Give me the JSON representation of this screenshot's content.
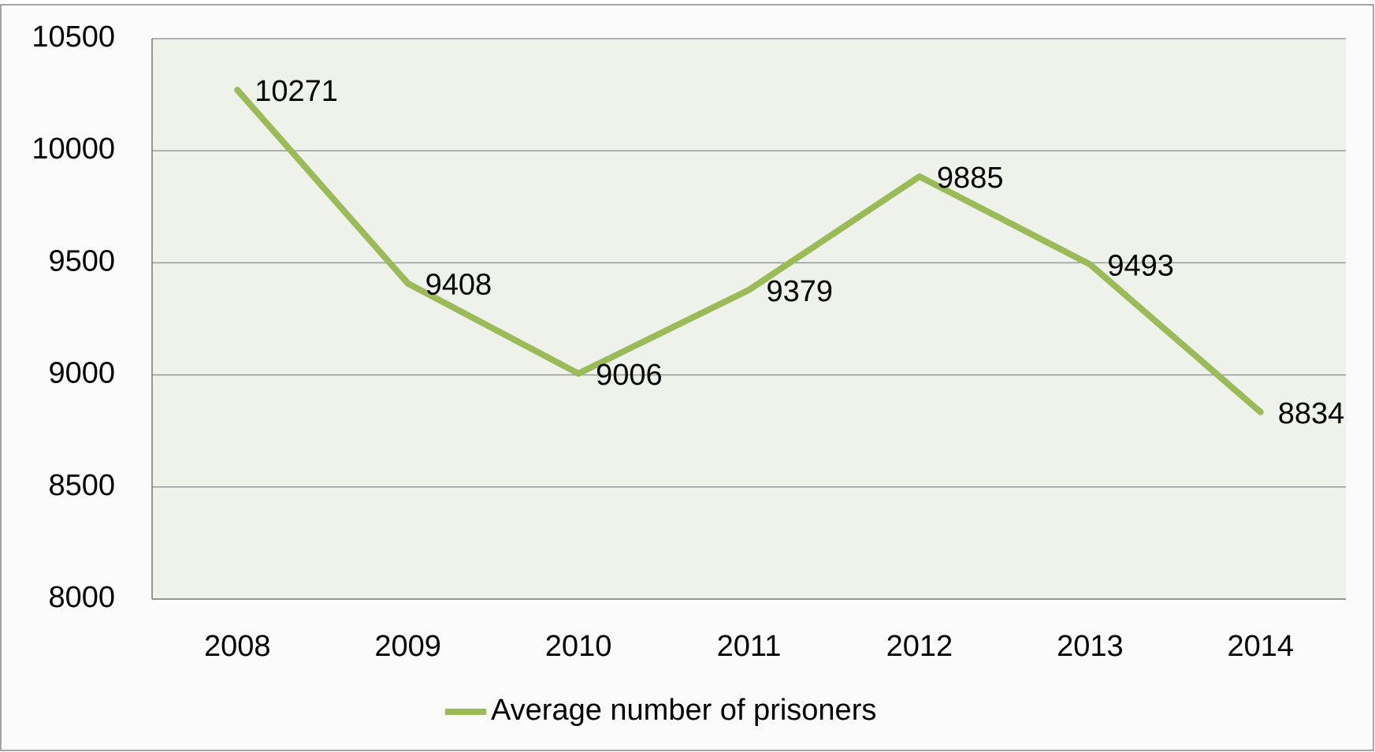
{
  "chart_data": {
    "type": "line",
    "categories": [
      "2008",
      "2009",
      "2010",
      "2011",
      "2012",
      "2013",
      "2014"
    ],
    "series": [
      {
        "name": "Average number of prisoners",
        "color": "#9bbb59",
        "values": [
          10271,
          9408,
          9006,
          9379,
          9885,
          9493,
          8834
        ]
      }
    ],
    "ylim": [
      8000,
      10500
    ],
    "yticks": [
      8000,
      8500,
      9000,
      9500,
      10000,
      10500
    ],
    "grid": true,
    "legend": "bottom"
  }
}
